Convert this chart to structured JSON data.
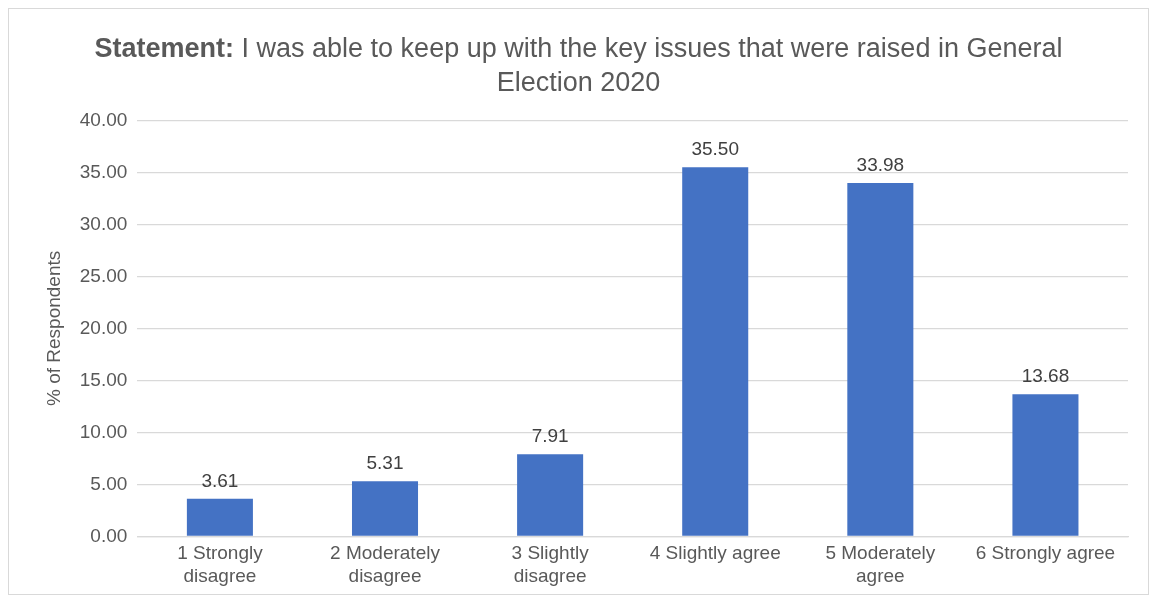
{
  "chart_data": {
    "type": "bar",
    "title": "Statement: I was able to keep up with the key issues that were raised in General Election 2020",
    "ylabel": "% of Respondents",
    "categories": [
      "1 Strongly disagree",
      "2 Moderately disagree",
      "3 Slightly disagree",
      "4 Slightly agree",
      "5 Moderately agree",
      "6 Strongly agree"
    ],
    "values": [
      3.61,
      5.31,
      7.91,
      35.5,
      33.98,
      13.68
    ],
    "value_labels": [
      "3.61",
      "5.31",
      "7.91",
      "35.50",
      "33.98",
      "13.68"
    ],
    "color": "#4472c4",
    "ylim": [
      0,
      40
    ],
    "yticks": [
      {
        "value": 0,
        "label": "0.00"
      },
      {
        "value": 5,
        "label": "5.00"
      },
      {
        "value": 10,
        "label": "10.00"
      },
      {
        "value": 15,
        "label": "15.00"
      },
      {
        "value": 20,
        "label": "20.00"
      },
      {
        "value": 25,
        "label": "25.00"
      },
      {
        "value": 30,
        "label": "30.00"
      },
      {
        "value": 35,
        "label": "35.00"
      },
      {
        "value": 40,
        "label": "40.00"
      }
    ],
    "grid": "y",
    "legend": false
  }
}
